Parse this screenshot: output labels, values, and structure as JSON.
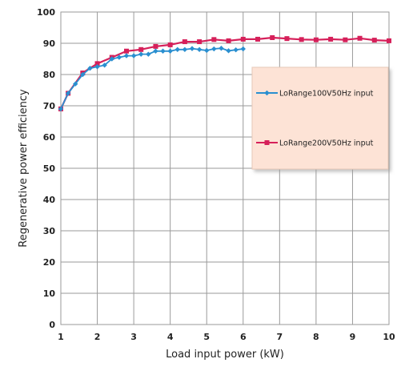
{
  "chart_data": {
    "type": "line",
    "title": "",
    "xlabel": "Load input power (kW)",
    "ylabel": "Regenerative power efficiency",
    "xlim": [
      1,
      10
    ],
    "ylim": [
      0,
      100
    ],
    "x_ticks": [
      "1",
      "2",
      "3",
      "4",
      "5",
      "6",
      "7",
      "8",
      "9",
      "10"
    ],
    "y_ticks": [
      "0",
      "10",
      "20",
      "30",
      "40",
      "50",
      "60",
      "70",
      "80",
      "90",
      "100"
    ],
    "grid": true,
    "legend_position": "right",
    "series": [
      {
        "name": "LoRange100V50Hz input",
        "color": "#2a8fd0",
        "marker": "diamond",
        "x": [
          1.0,
          1.2,
          1.4,
          1.6,
          1.8,
          2.0,
          2.2,
          2.4,
          2.6,
          2.8,
          3.0,
          3.2,
          3.4,
          3.6,
          3.8,
          4.0,
          4.2,
          4.4,
          4.6,
          4.8,
          5.0,
          5.2,
          5.4,
          5.6,
          5.8,
          6.0
        ],
        "y": [
          69.0,
          74.0,
          77.0,
          80.0,
          82.0,
          82.5,
          83.0,
          85.0,
          85.5,
          86.0,
          86.0,
          86.5,
          86.5,
          87.5,
          87.5,
          87.5,
          88.0,
          88.0,
          88.3,
          88.0,
          87.7,
          88.2,
          88.4,
          87.6,
          87.9,
          88.2
        ]
      },
      {
        "name": "LoRange200V50Hz input",
        "color": "#d6205a",
        "marker": "square",
        "x": [
          1.0,
          1.2,
          1.6,
          2.0,
          2.4,
          2.8,
          3.2,
          3.6,
          4.0,
          4.4,
          4.8,
          5.2,
          5.6,
          6.0,
          6.4,
          6.8,
          7.2,
          7.6,
          8.0,
          8.4,
          8.8,
          9.2,
          9.6,
          10.0
        ],
        "y": [
          69.0,
          74.0,
          80.5,
          83.5,
          85.5,
          87.5,
          88.0,
          89.0,
          89.5,
          90.5,
          90.5,
          91.2,
          90.8,
          91.3,
          91.3,
          91.8,
          91.5,
          91.2,
          91.1,
          91.3,
          91.1,
          91.6,
          91.0,
          90.8
        ]
      }
    ]
  }
}
